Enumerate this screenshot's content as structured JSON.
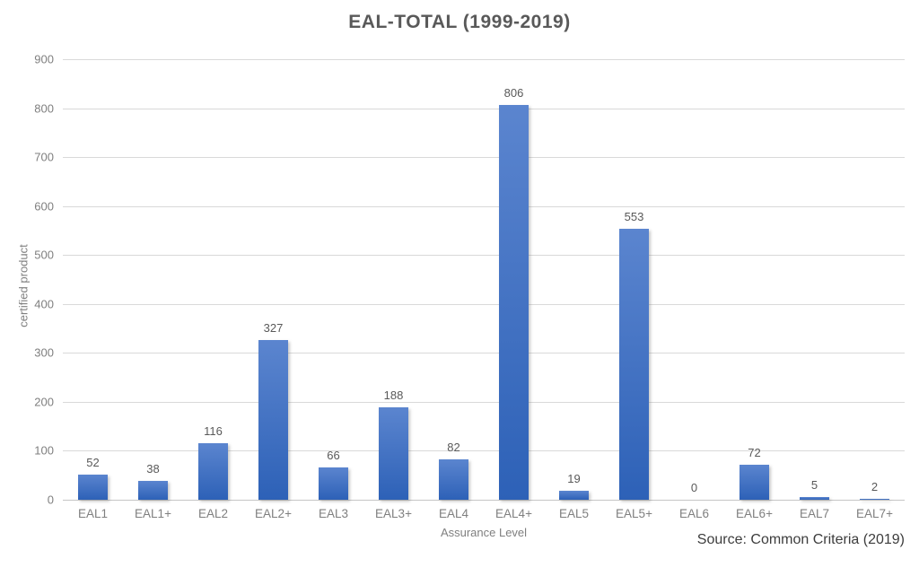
{
  "title": "EAL-TOTAL (1999-2019)",
  "source_note": "Source: Common Criteria (2019)",
  "colors": {
    "bar_gradient_top": "#5b85cf",
    "bar_gradient_bottom": "#2d61b7",
    "gridline": "#d9d9d9",
    "axis_text": "#7f7f7f",
    "title_text": "#595959",
    "data_label_text": "#595959",
    "source_text": "#3d3d3d",
    "background": "#ffffff"
  },
  "chart_data": {
    "type": "bar",
    "title": "EAL-TOTAL (1999-2019)",
    "xlabel": "Assurance Level",
    "ylabel": "certified product",
    "categories": [
      "EAL1",
      "EAL1+",
      "EAL2",
      "EAL2+",
      "EAL3",
      "EAL3+",
      "EAL4",
      "EAL4+",
      "EAL5",
      "EAL5+",
      "EAL6",
      "EAL6+",
      "EAL7",
      "EAL7+"
    ],
    "values": [
      52,
      38,
      116,
      327,
      66,
      188,
      82,
      806,
      19,
      553,
      0,
      72,
      5,
      2
    ],
    "data_labels_shown": true,
    "ylim": [
      0,
      900
    ],
    "ytick_step": 100,
    "yticks": [
      0,
      100,
      200,
      300,
      400,
      500,
      600,
      700,
      800,
      900
    ],
    "grid": true,
    "legend_position": "none",
    "annotation": "Source: Common Criteria (2019)"
  }
}
